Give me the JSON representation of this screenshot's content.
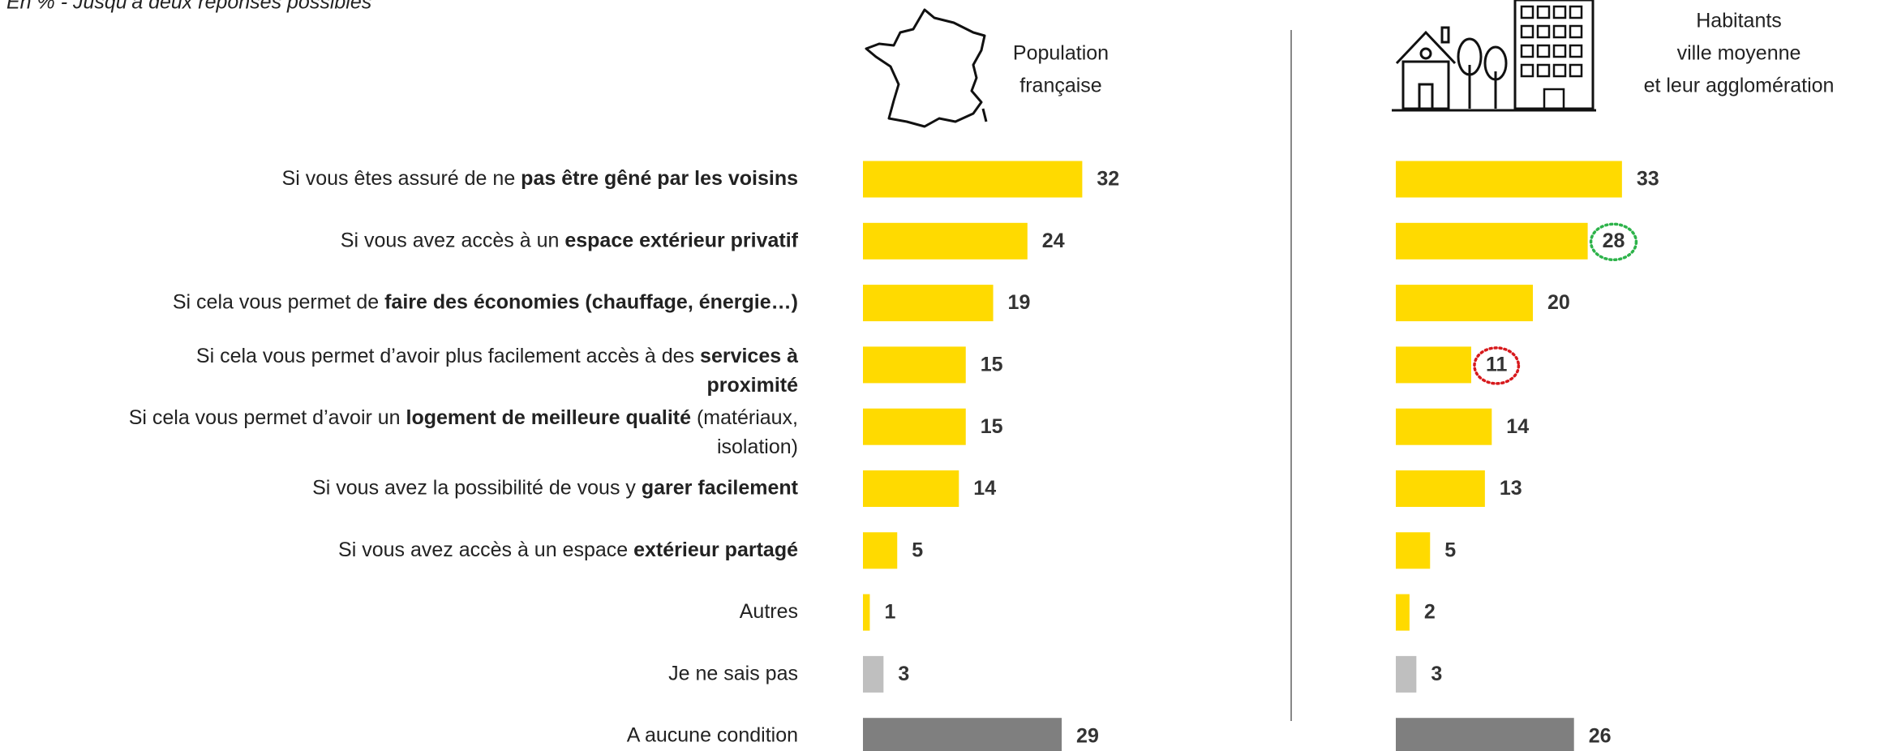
{
  "subtitle": "En %  - Jusqu’à deux réponses possibles",
  "chart_data": [
    {
      "type": "bar",
      "title": [
        "Population",
        "française"
      ],
      "categories": [
        [
          [
            {
              "text": "Si vous êtes assuré de ne ",
              "bold": false
            },
            {
              "text": "pas être gêné par les voisins",
              "bold": true
            }
          ]
        ],
        [
          [
            {
              "text": "Si vous avez accès à un ",
              "bold": false
            },
            {
              "text": "espace extérieur privatif",
              "bold": true
            }
          ]
        ],
        [
          [
            {
              "text": "Si cela vous permet de ",
              "bold": false
            },
            {
              "text": "faire des économies (chauffage, énergie…)",
              "bold": true
            }
          ]
        ],
        [
          [
            {
              "text": "Si cela vous permet d’avoir plus facilement accès à des ",
              "bold": false
            },
            {
              "text": "services à",
              "bold": true
            }
          ],
          [
            {
              "text": "proximité",
              "bold": true
            }
          ]
        ],
        [
          [
            {
              "text": "Si cela vous permet d’avoir un ",
              "bold": false
            },
            {
              "text": "logement de meilleure qualité",
              "bold": true
            },
            {
              "text": " (matériaux,",
              "bold": false
            }
          ],
          [
            {
              "text": "isolation)",
              "bold": false
            }
          ]
        ],
        [
          [
            {
              "text": "Si vous avez la possibilité de vous y ",
              "bold": false
            },
            {
              "text": "garer facilement",
              "bold": true
            }
          ]
        ],
        [
          [
            {
              "text": "Si vous avez accès à un espace ",
              "bold": false
            },
            {
              "text": "extérieur partagé",
              "bold": true
            }
          ]
        ],
        [
          [
            {
              "text": "Autres",
              "bold": false
            }
          ]
        ],
        [
          [
            {
              "text": "Je ne sais pas",
              "bold": false
            }
          ]
        ],
        [
          [
            {
              "text": "A aucune condition",
              "bold": false
            }
          ]
        ]
      ],
      "values": [
        32,
        24,
        19,
        15,
        15,
        14,
        5,
        1,
        3,
        29
      ],
      "colors": [
        "#FFDA00",
        "#FFDA00",
        "#FFDA00",
        "#FFDA00",
        "#FFDA00",
        "#FFDA00",
        "#FFDA00",
        "#FFDA00",
        "#BFBFBF",
        "#7F7F7F"
      ],
      "xlim": [
        0,
        40
      ]
    },
    {
      "type": "bar",
      "title": [
        "Habitants",
        "ville moyenne",
        "et leur agglomération"
      ],
      "values": [
        33,
        28,
        20,
        11,
        14,
        13,
        5,
        2,
        3,
        26
      ],
      "colors": [
        "#FFDA00",
        "#FFDA00",
        "#FFDA00",
        "#FFDA00",
        "#FFDA00",
        "#FFDA00",
        "#FFDA00",
        "#FFDA00",
        "#BFBFBF",
        "#7F7F7F"
      ],
      "xlim": [
        0,
        40
      ],
      "highlights": [
        {
          "index": 1,
          "color": "#2DB34A"
        },
        {
          "index": 3,
          "color": "#D7191C"
        }
      ]
    }
  ]
}
